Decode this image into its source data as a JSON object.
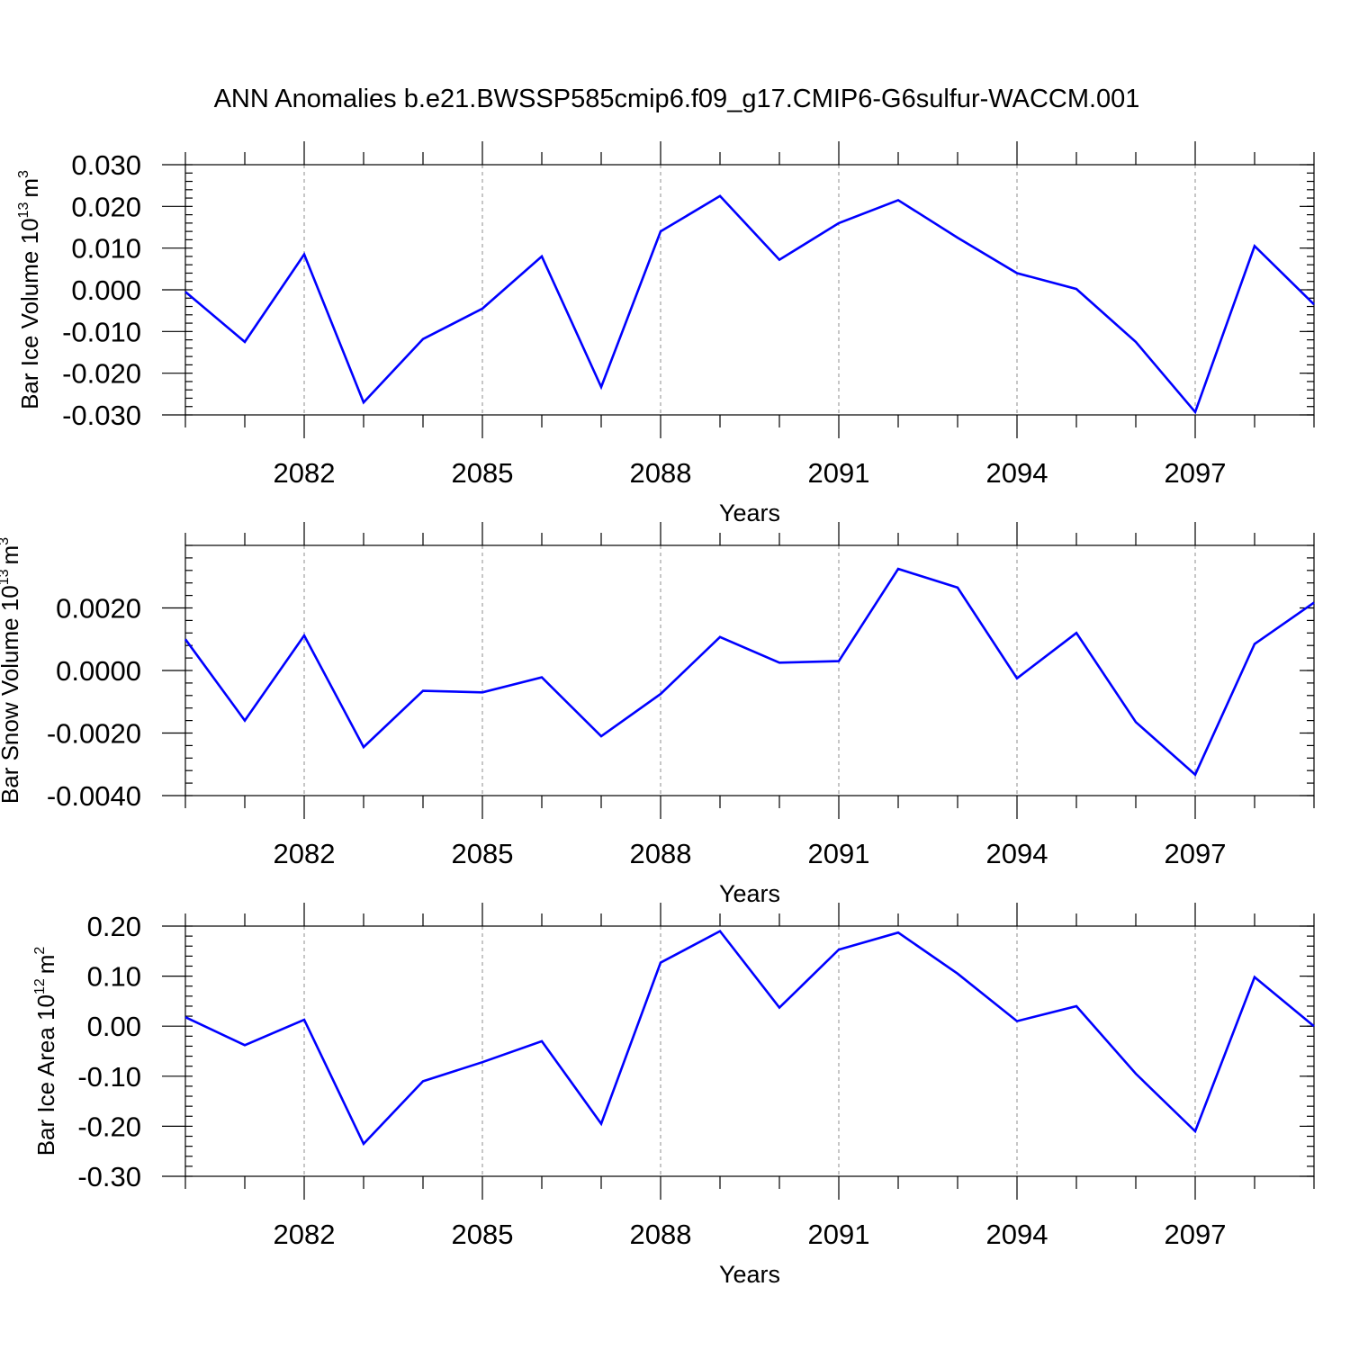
{
  "title": "ANN Anomalies b.e21.BWSSP585cmip6.f09_g17.CMIP6-G6sulfur-WACCM.001",
  "colors": {
    "series": "#0000ff",
    "grid": "#8c8c8c",
    "axes": "#000000"
  },
  "chart_data": [
    {
      "type": "line",
      "xlabel": "Years",
      "ylabel": {
        "main": "Bar Ice Volume 10",
        "exp": "13",
        "unit": "m",
        "unit_exp": "3"
      },
      "xlim": [
        2080,
        2099
      ],
      "ylim": [
        -0.03,
        0.03
      ],
      "x_ticks": [
        2082,
        2085,
        2088,
        2091,
        2094,
        2097
      ],
      "y_ticks": [
        -0.03,
        -0.02,
        -0.01,
        0.0,
        0.01,
        0.02,
        0.03
      ],
      "y_tick_labels": [
        "-0.030",
        "-0.020",
        "-0.010",
        "0.000",
        "0.010",
        "0.020",
        "0.030"
      ],
      "y_minor_step": 0.002,
      "grid": "vertical dashed at major x ticks",
      "x": [
        2080,
        2081,
        2082,
        2083,
        2084,
        2085,
        2086,
        2087,
        2088,
        2089,
        2090,
        2091,
        2092,
        2093,
        2094,
        2095,
        2096,
        2097,
        2098,
        2099
      ],
      "values": [
        -0.0005,
        -0.0125,
        0.0085,
        -0.027,
        -0.0118,
        -0.0045,
        0.008,
        -0.0233,
        0.014,
        0.0225,
        0.0072,
        0.016,
        0.0215,
        0.0125,
        0.004,
        0.0002,
        -0.0125,
        -0.0293,
        0.0105,
        -0.0035
      ]
    },
    {
      "type": "line",
      "xlabel": "Years",
      "ylabel": {
        "main": "Bar Snow Volume 10",
        "exp": "13",
        "unit": "m",
        "unit_exp": "3"
      },
      "xlim": [
        2080,
        2099
      ],
      "ylim": [
        -0.004,
        0.004
      ],
      "x_ticks": [
        2082,
        2085,
        2088,
        2091,
        2094,
        2097
      ],
      "y_ticks": [
        -0.004,
        -0.002,
        0.0,
        0.002
      ],
      "y_tick_labels": [
        "-0.0040",
        "-0.0020",
        "0.0000",
        "0.0020"
      ],
      "y_minor_step": 0.0004,
      "grid": "vertical dashed at major x ticks",
      "x": [
        2080,
        2081,
        2082,
        2083,
        2084,
        2085,
        2086,
        2087,
        2088,
        2089,
        2090,
        2091,
        2092,
        2093,
        2094,
        2095,
        2096,
        2097,
        2098,
        2099
      ],
      "values": [
        0.001,
        -0.0016,
        0.00112,
        -0.00245,
        -0.00065,
        -0.0007,
        -0.00022,
        -0.0021,
        -0.00075,
        0.00107,
        0.00025,
        0.0003,
        0.00325,
        0.00265,
        -0.00025,
        0.0012,
        -0.00165,
        -0.00333,
        0.00085,
        0.00217
      ]
    },
    {
      "type": "line",
      "xlabel": "Years",
      "ylabel": {
        "main": "Bar Ice Area 10",
        "exp": "12",
        "unit": "m",
        "unit_exp": "2"
      },
      "xlim": [
        2080,
        2099
      ],
      "ylim": [
        -0.3,
        0.2
      ],
      "x_ticks": [
        2082,
        2085,
        2088,
        2091,
        2094,
        2097
      ],
      "y_ticks": [
        -0.3,
        -0.2,
        -0.1,
        0.0,
        0.1,
        0.2
      ],
      "y_tick_labels": [
        "-0.30",
        "-0.20",
        "-0.10",
        "0.00",
        "0.10",
        "0.20"
      ],
      "y_minor_step": 0.02,
      "grid": "vertical dashed at major x ticks",
      "x": [
        2080,
        2081,
        2082,
        2083,
        2084,
        2085,
        2086,
        2087,
        2088,
        2089,
        2090,
        2091,
        2092,
        2093,
        2094,
        2095,
        2096,
        2097,
        2098,
        2099
      ],
      "values": [
        0.018,
        -0.038,
        0.013,
        -0.235,
        -0.11,
        -0.072,
        -0.03,
        -0.195,
        0.127,
        0.19,
        0.037,
        0.153,
        0.187,
        0.105,
        0.01,
        0.04,
        -0.095,
        -0.21,
        0.098,
        0.0
      ]
    }
  ]
}
